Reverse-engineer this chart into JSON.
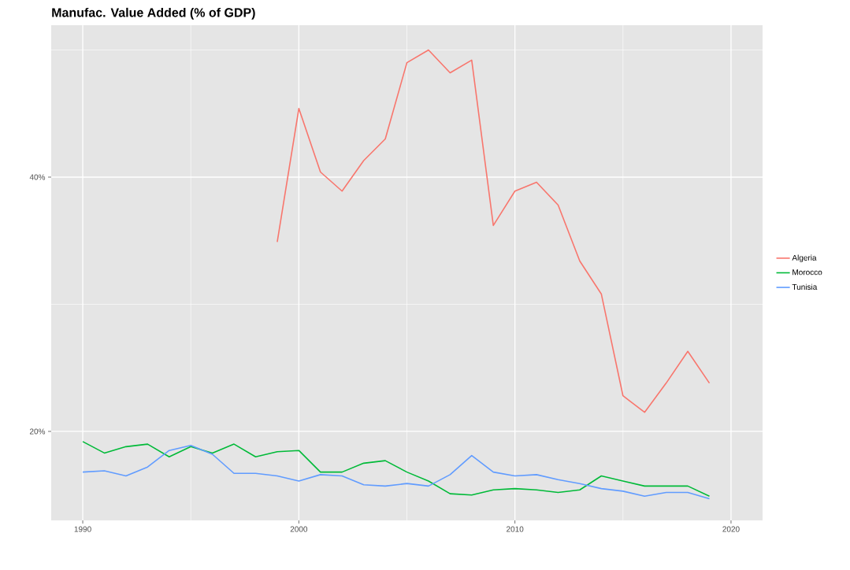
{
  "chart_data": {
    "type": "line",
    "title": "Manufac. Value Added (% of GDP)",
    "x": [
      1990,
      1991,
      1992,
      1993,
      1994,
      1995,
      1996,
      1997,
      1998,
      1999,
      2000,
      2001,
      2002,
      2003,
      2004,
      2005,
      2006,
      2007,
      2008,
      2009,
      2010,
      2011,
      2012,
      2013,
      2014,
      2015,
      2016,
      2017,
      2018,
      2019
    ],
    "series": [
      {
        "name": "Algeria",
        "color": "#f8766d",
        "values": [
          null,
          null,
          null,
          null,
          null,
          null,
          null,
          null,
          null,
          34.9,
          45.4,
          40.4,
          38.9,
          41.3,
          43.0,
          49.0,
          50.0,
          48.2,
          49.2,
          36.2,
          38.9,
          39.6,
          37.8,
          33.4,
          30.8,
          22.8,
          21.5,
          23.8,
          26.3,
          23.8
        ]
      },
      {
        "name": "Morocco",
        "color": "#00ba38",
        "values": [
          19.2,
          18.3,
          18.8,
          19.0,
          18.0,
          18.8,
          18.3,
          19.0,
          18.0,
          18.4,
          18.5,
          16.8,
          16.8,
          17.5,
          17.7,
          16.8,
          16.1,
          15.1,
          15.0,
          15.4,
          15.5,
          15.4,
          15.2,
          15.4,
          16.5,
          16.1,
          15.7,
          15.7,
          15.7,
          14.9
        ]
      },
      {
        "name": "Tunisia",
        "color": "#619cff",
        "values": [
          16.8,
          16.9,
          16.5,
          17.2,
          18.5,
          18.9,
          18.2,
          16.7,
          16.7,
          16.5,
          16.1,
          16.6,
          16.5,
          15.8,
          15.7,
          15.9,
          15.7,
          16.6,
          18.1,
          16.8,
          16.5,
          16.6,
          16.2,
          15.9,
          15.5,
          15.3,
          14.9,
          15.2,
          15.2,
          14.7
        ]
      }
    ],
    "xlim": [
      1988.54,
      2021.46
    ],
    "ylim": [
      13.0,
      51.95
    ],
    "xticks": [
      1990,
      2000,
      2010,
      2020
    ],
    "yticks": [
      {
        "value": 20,
        "label": "20%"
      },
      {
        "value": 40,
        "label": "40%"
      }
    ],
    "grid": true,
    "legend": "right",
    "marker": "none",
    "line_style": "solid"
  }
}
